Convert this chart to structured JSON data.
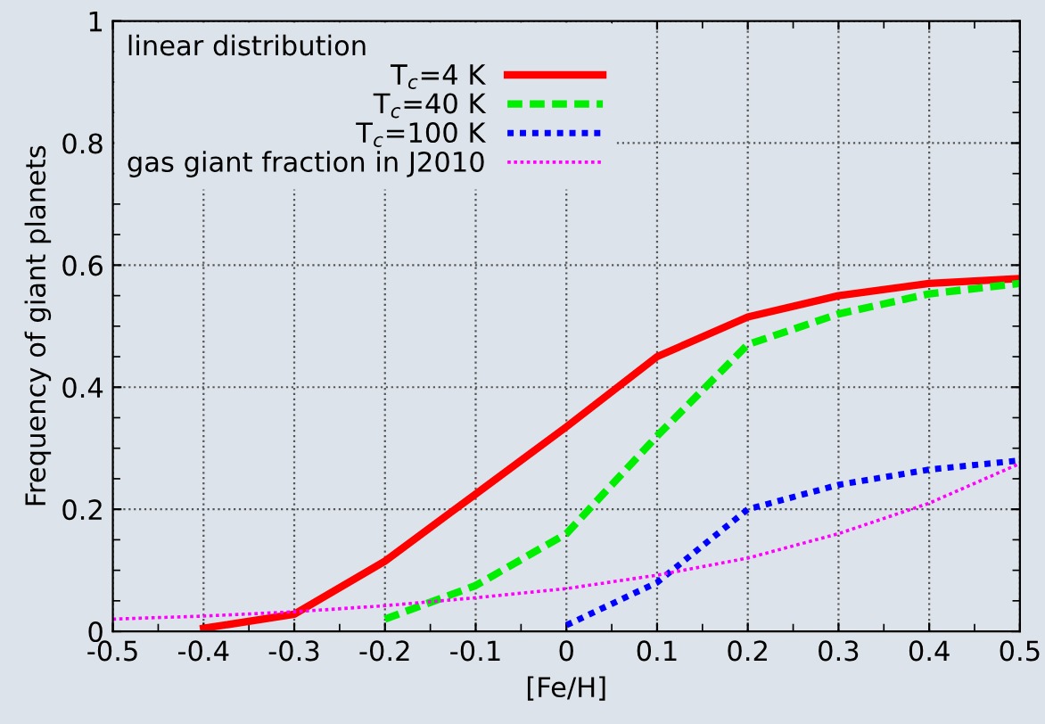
{
  "chart_data": {
    "type": "line",
    "xlabel": "[Fe/H]",
    "ylabel": "Frequency of giant planets",
    "legend_title": "linear distribution",
    "legend": "top left",
    "grid": true,
    "marker": "none",
    "xlim": [
      -0.5,
      0.5
    ],
    "ylim": [
      0,
      1
    ],
    "xticks": [
      -0.5,
      -0.4,
      -0.3,
      -0.2,
      -0.1,
      0,
      0.1,
      0.2,
      0.3,
      0.4,
      0.5
    ],
    "yticks": [
      0,
      0.2,
      0.4,
      0.6,
      0.8,
      1
    ],
    "series": [
      {
        "name": "T$_{c}$=4 K",
        "color": "#ff0000",
        "line_style": "solid",
        "x": [
          -0.4,
          -0.3,
          -0.2,
          -0.1,
          0,
          0.1,
          0.2,
          0.3,
          0.4,
          0.5
        ],
        "values": [
          0.005,
          0.028,
          0.115,
          0.225,
          0.335,
          0.45,
          0.515,
          0.55,
          0.57,
          0.578
        ]
      },
      {
        "name": "T$_{c}$=40 K",
        "color": "#00ee00",
        "line_style": "dashed",
        "x": [
          -0.2,
          -0.1,
          0,
          0.1,
          0.2,
          0.3,
          0.4,
          0.5
        ],
        "values": [
          0.02,
          0.075,
          0.16,
          0.32,
          0.47,
          0.52,
          0.553,
          0.57
        ]
      },
      {
        "name": "T$_{c}$=100 K",
        "color": "#0000ff",
        "line_style": "dotted",
        "x": [
          0,
          0.1,
          0.2,
          0.3,
          0.4,
          0.5
        ],
        "values": [
          0.01,
          0.08,
          0.2,
          0.24,
          0.265,
          0.28
        ]
      },
      {
        "name": "gas giant fraction in J2010",
        "color": "#ff00ff",
        "line_style": "dotted",
        "x": [
          -0.5,
          -0.4,
          -0.3,
          -0.2,
          -0.1,
          0,
          0.1,
          0.2,
          0.3,
          0.4,
          0.5
        ],
        "values": [
          0.02,
          0.025,
          0.032,
          0.042,
          0.055,
          0.07,
          0.092,
          0.12,
          0.16,
          0.21,
          0.275
        ]
      }
    ]
  }
}
